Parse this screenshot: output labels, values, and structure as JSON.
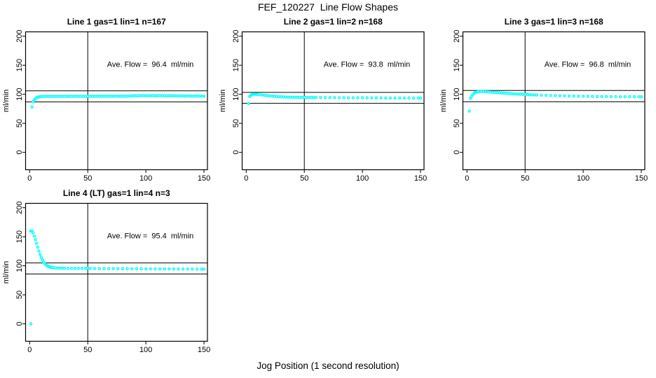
{
  "figure": {
    "title": "FEF_120227  Line Flow Shapes",
    "xlabel": "Jog Position (1 second resolution)"
  },
  "colors": {
    "marker": "#00FFFF",
    "axis": "#000000",
    "background": "#ffffff"
  },
  "chart_data": {
    "type": "scatter",
    "ylabel": "ml/min",
    "xlim": [
      -3.5,
      153
    ],
    "ylim": [
      -30,
      207.5
    ],
    "xticks": [
      0,
      50,
      100,
      150
    ],
    "yticks": [
      0,
      50,
      100,
      150,
      200
    ],
    "vline_x": 50,
    "legend": "none",
    "grid": false,
    "panels": [
      {
        "title": "Line 1 gas=1 lin=1 n=167",
        "ave_flow": 96.4,
        "ave_flow_label": "Ave. Flow =  96.4  ml/min",
        "ref_lines": [
          106.0,
          86.8
        ],
        "points": [
          [
            2,
            78
          ],
          [
            3,
            87
          ],
          [
            4,
            90.5
          ],
          [
            5,
            92.5
          ],
          [
            6,
            94
          ],
          [
            7,
            95
          ],
          [
            8,
            95.5
          ],
          [
            9,
            95.8
          ],
          [
            10,
            96
          ],
          [
            12,
            96.2
          ],
          [
            14,
            96.3
          ],
          [
            16,
            96.2
          ],
          [
            18,
            96.4
          ],
          [
            20,
            96.3
          ],
          [
            22,
            96.4
          ],
          [
            24,
            96.3
          ],
          [
            26,
            96.4
          ],
          [
            28,
            96.4
          ],
          [
            30,
            96.5
          ],
          [
            32,
            96.4
          ],
          [
            34,
            96.5
          ],
          [
            36,
            96.4
          ],
          [
            38,
            96.5
          ],
          [
            40,
            96.5
          ],
          [
            42,
            96.4
          ],
          [
            44,
            96.5
          ],
          [
            46,
            96.5
          ],
          [
            48,
            96.4
          ],
          [
            50,
            96.5
          ],
          [
            52,
            96.5
          ],
          [
            54,
            96.6
          ],
          [
            56,
            96.5
          ],
          [
            58,
            96.6
          ],
          [
            60,
            96.5
          ],
          [
            62,
            96.6
          ],
          [
            64,
            96.6
          ],
          [
            66,
            96.5
          ],
          [
            68,
            96.6
          ],
          [
            70,
            96.6
          ],
          [
            72,
            96.7
          ],
          [
            74,
            96.6
          ],
          [
            76,
            96.7
          ],
          [
            78,
            96.6
          ],
          [
            80,
            96.7
          ],
          [
            82,
            96.8
          ],
          [
            84,
            96.7
          ],
          [
            86,
            97
          ],
          [
            88,
            97.2
          ],
          [
            90,
            97.5
          ],
          [
            92,
            97.3
          ],
          [
            94,
            97.6
          ],
          [
            96,
            97.4
          ],
          [
            98,
            97.7
          ],
          [
            100,
            97.5
          ],
          [
            102,
            97.8
          ],
          [
            104,
            97.4
          ],
          [
            106,
            97.7
          ],
          [
            108,
            97.3
          ],
          [
            110,
            97.6
          ],
          [
            112,
            97.8
          ],
          [
            114,
            97.4
          ],
          [
            116,
            97.7
          ],
          [
            118,
            97.3
          ],
          [
            120,
            97.5
          ],
          [
            122,
            97.2
          ],
          [
            124,
            97.4
          ],
          [
            126,
            97.1
          ],
          [
            128,
            97.3
          ],
          [
            130,
            97
          ],
          [
            132,
            97.2
          ],
          [
            134,
            96.9
          ],
          [
            136,
            97.1
          ],
          [
            138,
            96.8
          ],
          [
            140,
            97
          ],
          [
            142,
            96.8
          ],
          [
            144,
            96.9
          ],
          [
            146,
            96.7
          ],
          [
            148,
            96.8
          ],
          [
            150,
            96.7
          ]
        ]
      },
      {
        "title": "Line 2 gas=1 lin=2 n=168",
        "ave_flow": 93.8,
        "ave_flow_label": "Ave. Flow =  93.8  ml/min",
        "ref_lines": [
          103.2,
          84.4
        ],
        "points": [
          [
            2,
            84
          ],
          [
            3,
            96
          ],
          [
            4,
            98.5
          ],
          [
            5,
            99.5
          ],
          [
            6,
            100
          ],
          [
            7,
            100.2
          ],
          [
            8,
            100.1
          ],
          [
            9,
            99.9
          ],
          [
            10,
            99.6
          ],
          [
            12,
            99.2
          ],
          [
            14,
            98.8
          ],
          [
            16,
            98.3
          ],
          [
            18,
            97.8
          ],
          [
            20,
            97.3
          ],
          [
            22,
            96.9
          ],
          [
            24,
            96.5
          ],
          [
            26,
            96.1
          ],
          [
            28,
            95.8
          ],
          [
            30,
            95.6
          ],
          [
            32,
            95.4
          ],
          [
            34,
            95.2
          ],
          [
            36,
            95.1
          ],
          [
            38,
            95
          ],
          [
            40,
            94.9
          ],
          [
            42,
            94.8
          ],
          [
            44,
            94.8
          ],
          [
            46,
            94.7
          ],
          [
            48,
            94.7
          ],
          [
            50,
            94.6
          ],
          [
            52,
            94.6
          ],
          [
            54,
            94.5
          ],
          [
            56,
            94.5
          ],
          [
            58,
            94.4
          ],
          [
            60,
            94.4
          ],
          [
            64,
            94.3
          ],
          [
            68,
            94.3
          ],
          [
            72,
            94.2
          ],
          [
            76,
            94.2
          ],
          [
            80,
            94.1
          ],
          [
            84,
            94.1
          ],
          [
            88,
            94
          ],
          [
            92,
            94
          ],
          [
            96,
            93.9
          ],
          [
            100,
            93.9
          ],
          [
            104,
            93.9
          ],
          [
            108,
            93.8
          ],
          [
            112,
            93.8
          ],
          [
            116,
            93.8
          ],
          [
            120,
            93.7
          ],
          [
            124,
            93.7
          ],
          [
            128,
            93.7
          ],
          [
            132,
            93.6
          ],
          [
            136,
            93.6
          ],
          [
            140,
            93.6
          ],
          [
            144,
            93.5
          ],
          [
            148,
            93.5
          ],
          [
            150,
            93.5
          ]
        ]
      },
      {
        "title": "Line 3 gas=1 lin=3 n=168",
        "ave_flow": 96.8,
        "ave_flow_label": "Ave. Flow =  96.8  ml/min",
        "ref_lines": [
          106.5,
          87.1
        ],
        "points": [
          [
            2,
            71
          ],
          [
            3,
            93
          ],
          [
            4,
            96.5
          ],
          [
            5,
            99.5
          ],
          [
            6,
            101.5
          ],
          [
            7,
            103
          ],
          [
            8,
            103.8
          ],
          [
            9,
            104.2
          ],
          [
            10,
            104.5
          ],
          [
            12,
            104.6
          ],
          [
            14,
            104.6
          ],
          [
            16,
            104.4
          ],
          [
            18,
            104.2
          ],
          [
            20,
            103.9
          ],
          [
            22,
            103.5
          ],
          [
            24,
            103.2
          ],
          [
            26,
            102.9
          ],
          [
            28,
            102.6
          ],
          [
            30,
            102.3
          ],
          [
            32,
            102
          ],
          [
            34,
            101.7
          ],
          [
            36,
            101.4
          ],
          [
            38,
            101.1
          ],
          [
            40,
            100.8
          ],
          [
            42,
            100.5
          ],
          [
            44,
            100.3
          ],
          [
            46,
            100.1
          ],
          [
            48,
            99.9
          ],
          [
            50,
            99.7
          ],
          [
            52,
            99.5
          ],
          [
            54,
            99.3
          ],
          [
            56,
            99.1
          ],
          [
            58,
            98.9
          ],
          [
            60,
            98.8
          ],
          [
            64,
            98.5
          ],
          [
            68,
            98.2
          ],
          [
            72,
            97.9
          ],
          [
            76,
            97.7
          ],
          [
            80,
            97.4
          ],
          [
            84,
            97.2
          ],
          [
            88,
            97
          ],
          [
            92,
            96.8
          ],
          [
            96,
            96.7
          ],
          [
            100,
            96.5
          ],
          [
            104,
            96.4
          ],
          [
            108,
            96.3
          ],
          [
            112,
            96.2
          ],
          [
            116,
            96.1
          ],
          [
            120,
            96
          ],
          [
            124,
            95.9
          ],
          [
            128,
            95.9
          ],
          [
            132,
            95.8
          ],
          [
            136,
            95.8
          ],
          [
            140,
            95.7
          ],
          [
            144,
            95.7
          ],
          [
            148,
            95.6
          ],
          [
            150,
            95.6
          ]
        ]
      },
      {
        "title": "Line 4 (LT) gas=1 lin=4 n=3",
        "ave_flow": 95.4,
        "ave_flow_label": "Ave. Flow =  95.4  ml/min",
        "ref_lines": [
          104.9,
          85.9
        ],
        "points": [
          [
            1,
            0
          ],
          [
            1,
            160
          ],
          [
            2,
            160
          ],
          [
            3,
            157
          ],
          [
            4,
            151
          ],
          [
            5,
            145
          ],
          [
            6,
            138.5
          ],
          [
            7,
            132
          ],
          [
            8,
            125.5
          ],
          [
            9,
            119.5
          ],
          [
            10,
            114.5
          ],
          [
            11,
            110
          ],
          [
            12,
            106.5
          ],
          [
            13,
            103.8
          ],
          [
            14,
            101.8
          ],
          [
            15,
            100.2
          ],
          [
            16,
            99
          ],
          [
            17,
            98.2
          ],
          [
            18,
            97.6
          ],
          [
            19,
            97.1
          ],
          [
            20,
            96.8
          ],
          [
            22,
            96.4
          ],
          [
            24,
            96.1
          ],
          [
            26,
            95.9
          ],
          [
            28,
            95.8
          ],
          [
            30,
            95.7
          ],
          [
            33,
            95.6
          ],
          [
            36,
            95.5
          ],
          [
            39,
            95.5
          ],
          [
            42,
            95.4
          ],
          [
            45,
            95.4
          ],
          [
            48,
            95.4
          ],
          [
            50,
            96
          ],
          [
            52,
            95.3
          ],
          [
            56,
            95.3
          ],
          [
            60,
            95.2
          ],
          [
            64,
            95.2
          ],
          [
            68,
            95.1
          ],
          [
            72,
            95.1
          ],
          [
            76,
            95
          ],
          [
            80,
            95
          ],
          [
            84,
            94.9
          ],
          [
            88,
            94.9
          ],
          [
            92,
            94.8
          ],
          [
            96,
            94.8
          ],
          [
            100,
            94.7
          ],
          [
            104,
            94.7
          ],
          [
            108,
            94.6
          ],
          [
            112,
            94.6
          ],
          [
            116,
            94.5
          ],
          [
            120,
            94.5
          ],
          [
            124,
            94.5
          ],
          [
            128,
            94.4
          ],
          [
            132,
            94.4
          ],
          [
            136,
            94.4
          ],
          [
            140,
            94.3
          ],
          [
            144,
            94.3
          ],
          [
            148,
            94.3
          ],
          [
            150,
            94.3
          ]
        ]
      }
    ]
  }
}
